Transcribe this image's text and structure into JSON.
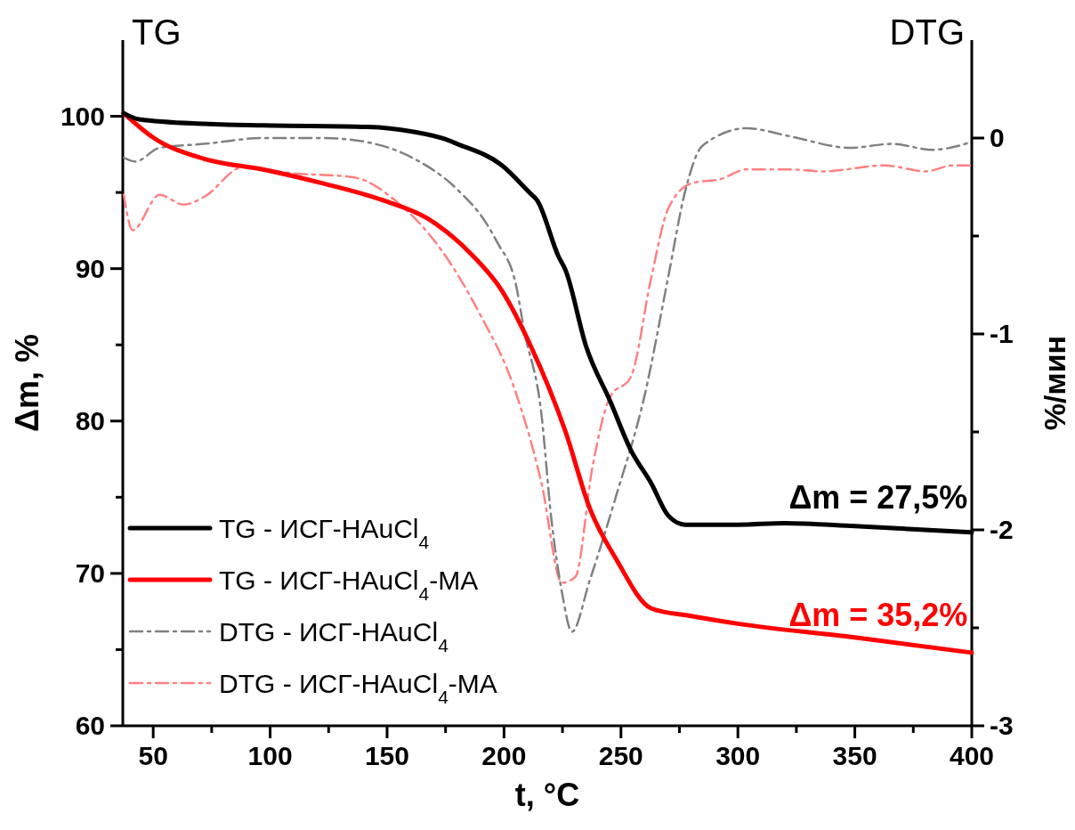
{
  "chart_data": {
    "type": "line",
    "xlabel": "t, °C",
    "ylabel": "Δm, %",
    "y2label": "%/мин",
    "xlim": [
      37,
      400
    ],
    "xticks": [
      50,
      {
        "value": 75,
        "label": null
      },
      100,
      {
        "value": 125,
        "label": null
      },
      150,
      {
        "value": 175,
        "label": null
      },
      200,
      {
        "value": 225,
        "label": null
      },
      250,
      {
        "value": 275,
        "label": null
      },
      300,
      {
        "value": 325,
        "label": null
      },
      350,
      {
        "value": 375,
        "label": null
      },
      400
    ],
    "ylim": [
      60,
      105
    ],
    "yticks": [
      60,
      {
        "value": 65,
        "label": null
      },
      70,
      {
        "value": 75,
        "label": null
      },
      80,
      {
        "value": 85,
        "label": null
      },
      90,
      {
        "value": 95,
        "label": null
      },
      100
    ],
    "y2lim": [
      -3,
      0.5
    ],
    "y2ticks": [
      -3,
      {
        "value": -2.5,
        "label": null
      },
      -2,
      {
        "value": -1.5,
        "label": null
      },
      -1,
      {
        "value": -0.5,
        "label": null
      },
      0
    ],
    "legend": "bottom left",
    "grid": false,
    "annotations": [
      "TG",
      "DTG",
      {
        "text": "Δm = 27,5%",
        "x": 360,
        "y": 73.2
      },
      {
        "text": "Δm = 35,2%",
        "x": 360,
        "y": 65.5
      }
    ],
    "series": [
      {
        "name": "TG - ИСГ-HAuCl$_{4}$",
        "color": "#000000",
        "line_style": "solid",
        "x": [
          37.4,
          43.9,
          71.8,
          97.3,
          141.6,
          160.7,
          174.8,
          179.8,
          198.9,
          211.5,
          214.1,
          223.3,
          226.3,
          235.1,
          245.4,
          254.2,
          263,
          270.2,
          277.5,
          300,
          320,
          350,
          400
        ],
        "values": [
          100.2,
          99.8,
          99.5,
          99.4,
          99.3,
          99,
          98.5,
          98.2,
          96.8,
          94.9,
          94.5,
          90.8,
          89.9,
          84.9,
          81.3,
          78.1,
          75.9,
          73.8,
          73.2,
          73.2,
          73.3,
          73.1,
          72.7
        ]
      },
      {
        "name": "TG - ИСГ-HAuCl$_{4}$-MA",
        "color": "#ff0000",
        "line_style": "solid",
        "x": [
          37.4,
          50,
          71.8,
          97.3,
          122.5,
          148,
          167.2,
          186.3,
          198.9,
          211.5,
          226.3,
          236.6,
          248.1,
          263,
          280,
          300,
          350,
          400
        ],
        "values": [
          100.2,
          98.6,
          97.2,
          96.5,
          95.6,
          94.5,
          93.3,
          90.9,
          88.6,
          84.9,
          79.3,
          74.3,
          70.9,
          67.7,
          67.2,
          66.7,
          65.8,
          64.8
        ]
      },
      {
        "name": "DTG - ИСГ-HAuCl$_{4}$",
        "color": "#808080",
        "line_style": "dashed",
        "axis": "y2",
        "x": [
          37.4,
          42.4,
          52.7,
          71.8,
          97.3,
          122.5,
          135.5,
          160.7,
          179.8,
          192.7,
          197,
          205.3,
          208.4,
          216,
          220.2,
          224.8,
          229,
          236.6,
          248.1,
          260,
          270.2,
          277.5,
          284.8,
          303.8,
          321.8,
          348.1,
          365.7,
          383.2,
          400
        ],
        "values": [
          -0.1,
          -0.12,
          -0.05,
          -0.03,
          0,
          0,
          -0.01,
          -0.1,
          -0.26,
          -0.44,
          -0.53,
          -0.76,
          -0.97,
          -1.41,
          -1.94,
          -2.32,
          -2.52,
          -2.26,
          -1.82,
          -1.32,
          -0.71,
          -0.27,
          -0.04,
          0.05,
          0.01,
          -0.05,
          -0.03,
          -0.06,
          -0.02
        ]
      },
      {
        "name": "DTG - ИСГ-HAuCl$_{4}$-MA",
        "color": "#ff8080",
        "line_style": "dashed",
        "axis": "y2",
        "x": [
          37.4,
          41.2,
          52.7,
          63,
          71.8,
          88.2,
          109.9,
          135.5,
          154.6,
          173.7,
          189.3,
          204.2,
          216,
          224.8,
          230.5,
          237.8,
          245.4,
          254.2,
          263,
          270.2,
          280.5,
          292.4,
          303.8,
          321.8,
          336.3,
          362.6,
          380.2,
          392,
          400
        ],
        "values": [
          -0.29,
          -0.47,
          -0.29,
          -0.34,
          -0.3,
          -0.15,
          -0.18,
          -0.2,
          -0.33,
          -0.58,
          -0.89,
          -1.27,
          -1.76,
          -2.27,
          -2.24,
          -1.68,
          -1.32,
          -1.22,
          -0.71,
          -0.36,
          -0.23,
          -0.21,
          -0.16,
          -0.16,
          -0.17,
          -0.14,
          -0.17,
          -0.14,
          -0.14
        ]
      }
    ]
  }
}
